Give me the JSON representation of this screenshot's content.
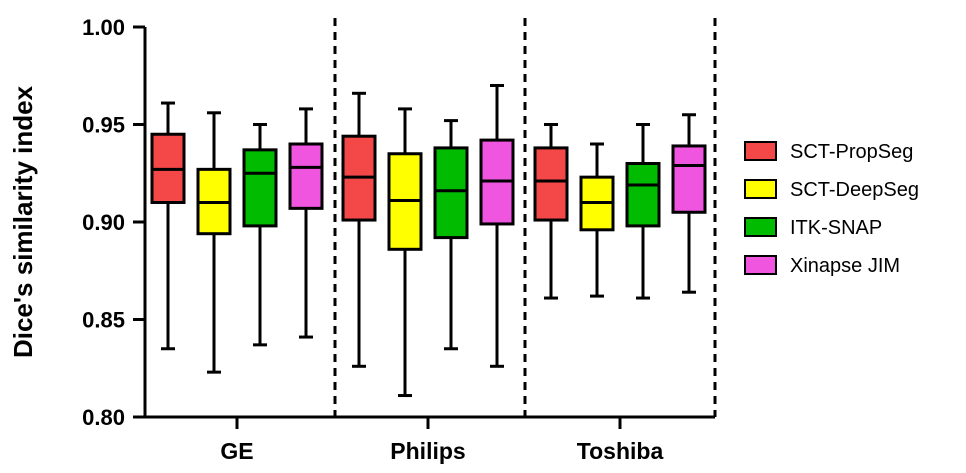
{
  "chart_data": {
    "type": "box",
    "ylabel": "Dice's similarity index",
    "xlabel": "",
    "ylim": [
      0.8,
      1.0
    ],
    "yticks": [
      0.8,
      0.85,
      0.9,
      0.95,
      1.0
    ],
    "ytick_labels": [
      "0.80",
      "0.85",
      "0.90",
      "0.95",
      "1.00"
    ],
    "categories": [
      "GE",
      "Philips",
      "Toshiba"
    ],
    "grid": false,
    "legend_position": "right",
    "separators": "dashed vertical lines between and after groups",
    "series": [
      {
        "name": "SCT-PropSeg",
        "color": "#f44747",
        "boxes": [
          {
            "min": 0.835,
            "q1": 0.91,
            "median": 0.927,
            "q3": 0.945,
            "max": 0.961
          },
          {
            "min": 0.826,
            "q1": 0.901,
            "median": 0.923,
            "q3": 0.944,
            "max": 0.966
          },
          {
            "min": 0.861,
            "q1": 0.901,
            "median": 0.921,
            "q3": 0.938,
            "max": 0.95
          }
        ]
      },
      {
        "name": "SCT-DeepSeg",
        "color": "#ffff00",
        "boxes": [
          {
            "min": 0.823,
            "q1": 0.894,
            "median": 0.91,
            "q3": 0.927,
            "max": 0.956
          },
          {
            "min": 0.811,
            "q1": 0.886,
            "median": 0.911,
            "q3": 0.935,
            "max": 0.958
          },
          {
            "min": 0.862,
            "q1": 0.896,
            "median": 0.91,
            "q3": 0.923,
            "max": 0.94
          }
        ]
      },
      {
        "name": "ITK-SNAP",
        "color": "#00bb00",
        "boxes": [
          {
            "min": 0.837,
            "q1": 0.898,
            "median": 0.925,
            "q3": 0.937,
            "max": 0.95
          },
          {
            "min": 0.835,
            "q1": 0.892,
            "median": 0.916,
            "q3": 0.938,
            "max": 0.952
          },
          {
            "min": 0.861,
            "q1": 0.898,
            "median": 0.919,
            "q3": 0.93,
            "max": 0.95
          }
        ]
      },
      {
        "name": "Xinapse JIM",
        "color": "#f055e0",
        "boxes": [
          {
            "min": 0.841,
            "q1": 0.907,
            "median": 0.928,
            "q3": 0.94,
            "max": 0.958
          },
          {
            "min": 0.826,
            "q1": 0.899,
            "median": 0.921,
            "q3": 0.942,
            "max": 0.97
          },
          {
            "min": 0.864,
            "q1": 0.905,
            "median": 0.929,
            "q3": 0.939,
            "max": 0.955
          }
        ]
      }
    ]
  }
}
